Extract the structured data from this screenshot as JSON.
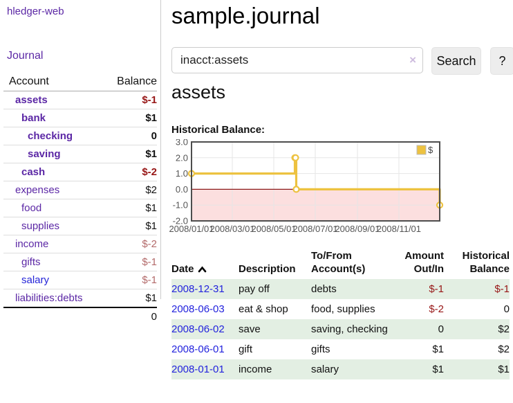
{
  "app": {
    "title": "hledger-web"
  },
  "sidebar": {
    "journal_link": "Journal",
    "account_header": "Account",
    "balance_header": "Balance",
    "accounts": [
      {
        "name": "assets",
        "level": 1,
        "bold": true,
        "blue": false,
        "balance": "$-1",
        "balance_style": "neg-strong"
      },
      {
        "name": "bank",
        "level": 2,
        "bold": true,
        "blue": false,
        "balance": "$1",
        "balance_style": "strong"
      },
      {
        "name": "checking",
        "level": 3,
        "bold": true,
        "blue": false,
        "balance": "0",
        "balance_style": "strong"
      },
      {
        "name": "saving",
        "level": 3,
        "bold": true,
        "blue": false,
        "balance": "$1",
        "balance_style": "strong"
      },
      {
        "name": "cash",
        "level": 2,
        "bold": true,
        "blue": false,
        "balance": "$-2",
        "balance_style": "neg-strong"
      },
      {
        "name": "expenses",
        "level": 1,
        "bold": false,
        "blue": false,
        "balance": "$2",
        "balance_style": "plain"
      },
      {
        "name": "food",
        "level": 2,
        "bold": false,
        "blue": false,
        "balance": "$1",
        "balance_style": "plain"
      },
      {
        "name": "supplies",
        "level": 2,
        "bold": false,
        "blue": false,
        "balance": "$1",
        "balance_style": "plain"
      },
      {
        "name": "income",
        "level": 1,
        "bold": false,
        "blue": false,
        "balance": "$-2",
        "balance_style": "neg-muted"
      },
      {
        "name": "gifts",
        "level": 2,
        "bold": false,
        "blue": false,
        "balance": "$-1",
        "balance_style": "neg-muted"
      },
      {
        "name": "salary",
        "level": 2,
        "bold": false,
        "blue": true,
        "balance": "$-1",
        "balance_style": "neg-muted"
      },
      {
        "name": "liabilities:debts",
        "level": 1,
        "bold": false,
        "blue": false,
        "balance": "$1",
        "balance_style": "plain"
      }
    ],
    "total": "0"
  },
  "header": {
    "title": "sample.journal"
  },
  "search": {
    "value": "inacct:assets",
    "clear_icon": "×",
    "button_label": "Search",
    "help_label": "?"
  },
  "account_page": {
    "heading": "assets",
    "chart_label": "Historical Balance:"
  },
  "chart_data": {
    "type": "line",
    "style": "step",
    "title": "Historical Balance",
    "legend": "$",
    "legend_position": "top-right",
    "line_color": "#edc240",
    "negative_region_color": "#fcdfdf",
    "zero_line_color": "#8b1a1a",
    "grid": true,
    "ylim": [
      -2.0,
      3.0
    ],
    "yticks": [
      "3.0",
      "2.0",
      "1.0",
      "0.0",
      "-1.0",
      "-2.0"
    ],
    "xticks": [
      "2008/01/01",
      "2008/03/01",
      "2008/05/01",
      "2008/07/01",
      "2008/09/01",
      "2008/11/01"
    ],
    "x_range": [
      "2008-01-01",
      "2008-12-31"
    ],
    "series": [
      {
        "name": "$",
        "points": [
          [
            "2008-01-01",
            1
          ],
          [
            "2008-06-01",
            2
          ],
          [
            "2008-06-02",
            2
          ],
          [
            "2008-06-03",
            0
          ],
          [
            "2008-12-31",
            -1
          ]
        ]
      }
    ]
  },
  "register": {
    "headers": {
      "date": "Date",
      "description": "Description",
      "accounts": "To/From Account(s)",
      "amount": "Amount Out/In",
      "balance": "Historical Balance"
    },
    "rows": [
      {
        "date": "2008-12-31",
        "description": "pay off",
        "accounts": "debts",
        "amount": "$-1",
        "amount_neg": true,
        "balance": "$-1",
        "balance_neg": true
      },
      {
        "date": "2008-06-03",
        "description": "eat & shop",
        "accounts": "food, supplies",
        "amount": "$-2",
        "amount_neg": true,
        "balance": "0",
        "balance_neg": false
      },
      {
        "date": "2008-06-02",
        "description": "save",
        "accounts": "saving, checking",
        "amount": "0",
        "amount_neg": false,
        "balance": "$2",
        "balance_neg": false
      },
      {
        "date": "2008-06-01",
        "description": "gift",
        "accounts": "gifts",
        "amount": "$1",
        "amount_neg": false,
        "balance": "$2",
        "balance_neg": false
      },
      {
        "date": "2008-01-01",
        "description": "income",
        "accounts": "salary",
        "amount": "$1",
        "amount_neg": false,
        "balance": "$1",
        "balance_neg": false
      }
    ]
  }
}
